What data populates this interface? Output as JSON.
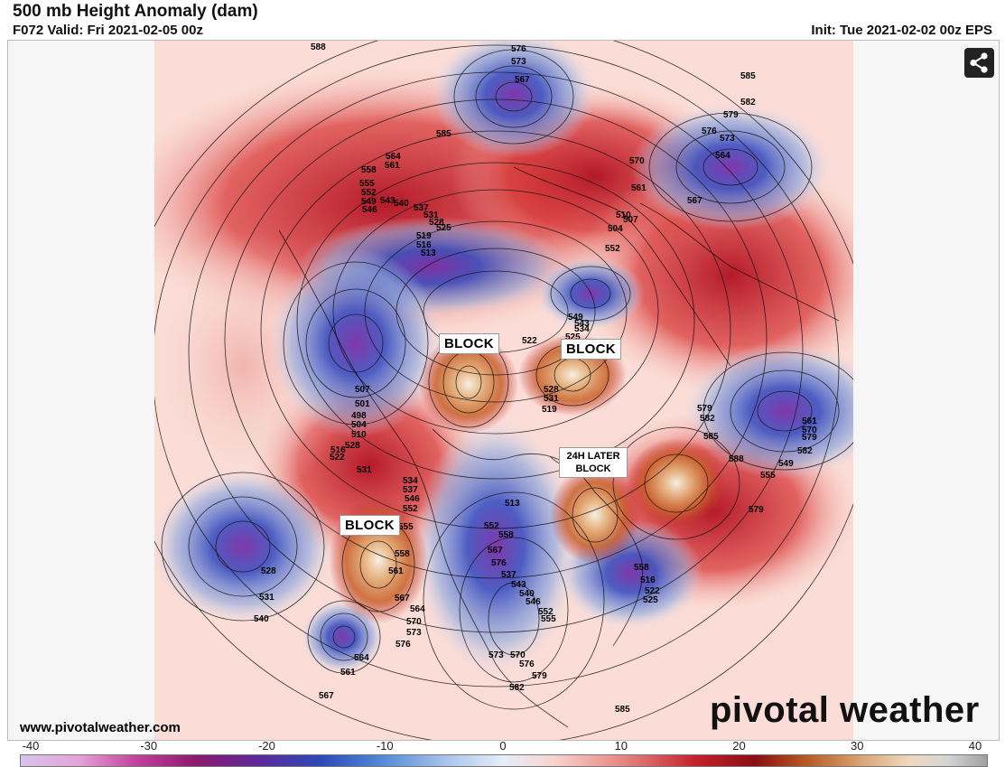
{
  "header": {
    "title": "500 mb Height Anomaly (dam)",
    "valid": "F072 Valid: Fri 2021-02-05 00z",
    "init": "Init: Tue 2021-02-02 00z EPS"
  },
  "share_icon": "share-icon",
  "annotations": {
    "block_1": "BLOCK",
    "block_2": "BLOCK",
    "block_3": "BLOCK",
    "later_block_line1": "24H LATER",
    "later_block_line2": "BLOCK"
  },
  "footer": {
    "url": "www.pivotalweather.com",
    "brand": "pivotal weather"
  },
  "colorbar": {
    "min": -40,
    "max": 40,
    "ticks": [
      "-40",
      "-30",
      "-20",
      "-10",
      "0",
      "10",
      "20",
      "30",
      "40"
    ]
  },
  "contour_labels": [
    "588",
    "576",
    "573",
    "567",
    "585",
    "582",
    "579",
    "576",
    "573",
    "564",
    "570",
    "561",
    "567",
    "564",
    "561",
    "558",
    "555",
    "552",
    "549",
    "546",
    "543",
    "540",
    "537",
    "531",
    "528",
    "525",
    "519",
    "516",
    "513",
    "510",
    "507",
    "504",
    "552",
    "549",
    "543",
    "534",
    "525",
    "522",
    "528",
    "531",
    "519",
    "513",
    "507",
    "501",
    "498",
    "504",
    "510",
    "516",
    "522",
    "528",
    "531",
    "534",
    "537",
    "546",
    "552",
    "555",
    "558",
    "561",
    "567",
    "564",
    "570",
    "573",
    "576",
    "579",
    "582",
    "585",
    "588",
    "555",
    "561",
    "570",
    "579",
    "582",
    "549",
    "552",
    "558",
    "567",
    "576",
    "537",
    "543",
    "540",
    "546",
    "552",
    "555",
    "558",
    "516",
    "522",
    "525",
    "528",
    "531",
    "540",
    "564",
    "561",
    "567",
    "573",
    "570",
    "576",
    "579",
    "582",
    "585",
    "573",
    "576",
    "579",
    "585"
  ]
}
